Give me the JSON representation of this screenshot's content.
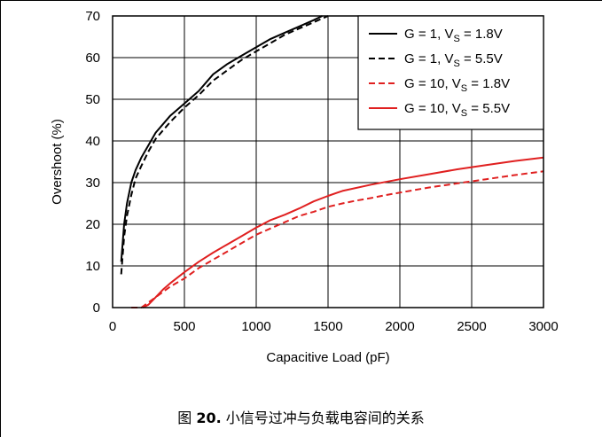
{
  "caption": {
    "prefix": "图",
    "number": "20.",
    "text": "小信号过冲与负载电容间的关系"
  },
  "chart_data": {
    "type": "line",
    "xlabel": "Capacitive Load (pF)",
    "ylabel": "Overshoot (%)",
    "xlim": [
      0,
      3000
    ],
    "ylim": [
      0,
      70
    ],
    "xticks": [
      0,
      500,
      1000,
      1500,
      2000,
      2500,
      3000
    ],
    "yticks": [
      0,
      10,
      20,
      30,
      40,
      50,
      60,
      70
    ],
    "grid": true,
    "legend_position": "top-right",
    "series": [
      {
        "name": "G = 1, VS = 1.8V",
        "legend_parts": {
          "pre": "G = 1, V",
          "sub": "S",
          "post": " = 1.8V"
        },
        "color": "#000000",
        "dash": "solid",
        "points": [
          [
            60,
            11
          ],
          [
            80,
            20
          ],
          [
            100,
            25
          ],
          [
            130,
            30
          ],
          [
            160,
            33
          ],
          [
            200,
            36
          ],
          [
            250,
            39
          ],
          [
            300,
            42
          ],
          [
            400,
            46
          ],
          [
            500,
            49
          ],
          [
            600,
            52
          ],
          [
            700,
            56
          ],
          [
            800,
            58.5
          ],
          [
            900,
            60.5
          ],
          [
            1000,
            62.5
          ],
          [
            1100,
            64.5
          ],
          [
            1200,
            66
          ],
          [
            1300,
            67.5
          ],
          [
            1400,
            69
          ],
          [
            1460,
            70
          ]
        ]
      },
      {
        "name": "G = 1, VS = 5.5V",
        "legend_parts": {
          "pre": "G = 1, V",
          "sub": "S",
          "post": " = 5.5V"
        },
        "color": "#000000",
        "dash": "dashed",
        "points": [
          [
            60,
            8
          ],
          [
            80,
            17
          ],
          [
            100,
            22
          ],
          [
            130,
            27
          ],
          [
            160,
            31
          ],
          [
            200,
            34
          ],
          [
            250,
            37.5
          ],
          [
            300,
            40.5
          ],
          [
            400,
            44.5
          ],
          [
            500,
            48
          ],
          [
            600,
            51
          ],
          [
            700,
            54.5
          ],
          [
            800,
            57
          ],
          [
            900,
            59.5
          ],
          [
            1000,
            61.5
          ],
          [
            1100,
            63.5
          ],
          [
            1200,
            65.5
          ],
          [
            1300,
            67
          ],
          [
            1400,
            68.5
          ],
          [
            1500,
            70
          ]
        ]
      },
      {
        "name": "G = 10, VS = 1.8V",
        "legend_parts": {
          "pre": "G = 10, V",
          "sub": "S",
          "post": " = 1.8V"
        },
        "color": "#e02020",
        "dash": "dashed",
        "points": [
          [
            130,
            0
          ],
          [
            200,
            0
          ],
          [
            300,
            2.5
          ],
          [
            400,
            5
          ],
          [
            500,
            7
          ],
          [
            600,
            9.5
          ],
          [
            700,
            11.5
          ],
          [
            800,
            13.5
          ],
          [
            900,
            15.5
          ],
          [
            1000,
            17.5
          ],
          [
            1100,
            19
          ],
          [
            1200,
            20.5
          ],
          [
            1300,
            22
          ],
          [
            1400,
            23
          ],
          [
            1500,
            24.2
          ],
          [
            1600,
            25
          ],
          [
            1700,
            25.7
          ],
          [
            1800,
            26.3
          ],
          [
            1900,
            27
          ],
          [
            2000,
            27.6
          ],
          [
            2200,
            28.8
          ],
          [
            2400,
            29.8
          ],
          [
            2600,
            30.8
          ],
          [
            2800,
            31.8
          ],
          [
            3000,
            32.7
          ]
        ]
      },
      {
        "name": "G = 10, VS = 5.5V",
        "legend_parts": {
          "pre": "G = 10, V",
          "sub": "S",
          "post": " = 5.5V"
        },
        "color": "#e02020",
        "dash": "solid",
        "points": [
          [
            210,
            0
          ],
          [
            250,
            0.7
          ],
          [
            300,
            2.5
          ],
          [
            350,
            4.3
          ],
          [
            400,
            5.8
          ],
          [
            500,
            8.5
          ],
          [
            600,
            11
          ],
          [
            700,
            13.2
          ],
          [
            800,
            15.2
          ],
          [
            900,
            17.2
          ],
          [
            1000,
            19.2
          ],
          [
            1100,
            21
          ],
          [
            1200,
            22.3
          ],
          [
            1300,
            23.8
          ],
          [
            1400,
            25.5
          ],
          [
            1500,
            26.8
          ],
          [
            1600,
            28
          ],
          [
            1800,
            29.5
          ],
          [
            2000,
            30.8
          ],
          [
            2200,
            32
          ],
          [
            2400,
            33.2
          ],
          [
            2600,
            34.2
          ],
          [
            2800,
            35.2
          ],
          [
            3000,
            36
          ]
        ]
      }
    ]
  }
}
